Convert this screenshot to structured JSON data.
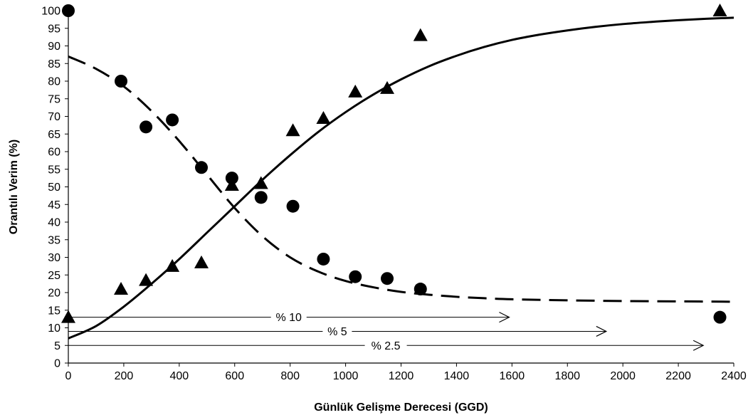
{
  "chart_data": {
    "type": "scatter",
    "title": "",
    "xlabel": "Günlük Gelişme Derecesi (GGD)",
    "ylabel": "Orantılı Verim (%)",
    "xlim": [
      0,
      2400
    ],
    "ylim": [
      0,
      100
    ],
    "x_ticks": [
      0,
      200,
      400,
      600,
      800,
      1000,
      1200,
      1400,
      1600,
      1800,
      2000,
      2200,
      2400
    ],
    "y_ticks": [
      0,
      5,
      10,
      15,
      20,
      25,
      30,
      35,
      40,
      45,
      50,
      55,
      60,
      65,
      70,
      75,
      80,
      85,
      90,
      95,
      100
    ],
    "grid": false,
    "series": [
      {
        "marker": "circle",
        "x": [
          0,
          190,
          280,
          375,
          480,
          590,
          695,
          810,
          920,
          1035,
          1150,
          1270,
          2350
        ],
        "y": [
          100,
          80,
          67,
          69,
          55.5,
          52.5,
          47,
          44.5,
          29.5,
          24.5,
          24,
          21,
          13
        ]
      },
      {
        "marker": "triangle",
        "x": [
          0,
          190,
          280,
          375,
          480,
          590,
          695,
          810,
          920,
          1035,
          1150,
          1270,
          2350
        ],
        "y": [
          13,
          21,
          23.5,
          27.5,
          28.5,
          50.5,
          51,
          66,
          69.5,
          77,
          78,
          93,
          100
        ]
      }
    ],
    "fit_curves": [
      {
        "style": "dashed",
        "x": [
          0,
          100,
          200,
          300,
          400,
          500,
          600,
          700,
          800,
          900,
          1000,
          1100,
          1200,
          1300,
          1400,
          1500,
          1600,
          1800,
          2000,
          2200,
          2400
        ],
        "y": [
          87,
          83.5,
          78.5,
          71.5,
          63,
          53.5,
          44,
          36,
          30,
          26,
          23.3,
          21.5,
          20.2,
          19.4,
          18.8,
          18.4,
          18.1,
          17.8,
          17.6,
          17.5,
          17.4
        ]
      },
      {
        "style": "solid",
        "x": [
          0,
          100,
          200,
          300,
          400,
          500,
          600,
          700,
          800,
          900,
          1000,
          1100,
          1200,
          1300,
          1400,
          1500,
          1600,
          1700,
          1800,
          1900,
          2000,
          2100,
          2200,
          2300,
          2400
        ],
        "y": [
          7,
          10.5,
          16,
          22.5,
          29.5,
          37,
          44.5,
          52,
          59,
          65.5,
          71.2,
          76.2,
          80.5,
          84.2,
          87.2,
          89.7,
          91.7,
          93.2,
          94.4,
          95.4,
          96.2,
          96.8,
          97.3,
          97.7,
          98
        ]
      }
    ],
    "arrows": [
      {
        "label": "% 10",
        "y": 13,
        "x_end": 1590
      },
      {
        "label": "% 5",
        "y": 9,
        "x_end": 1940
      },
      {
        "label": "% 2.5",
        "y": 5,
        "x_end": 2290
      }
    ]
  }
}
